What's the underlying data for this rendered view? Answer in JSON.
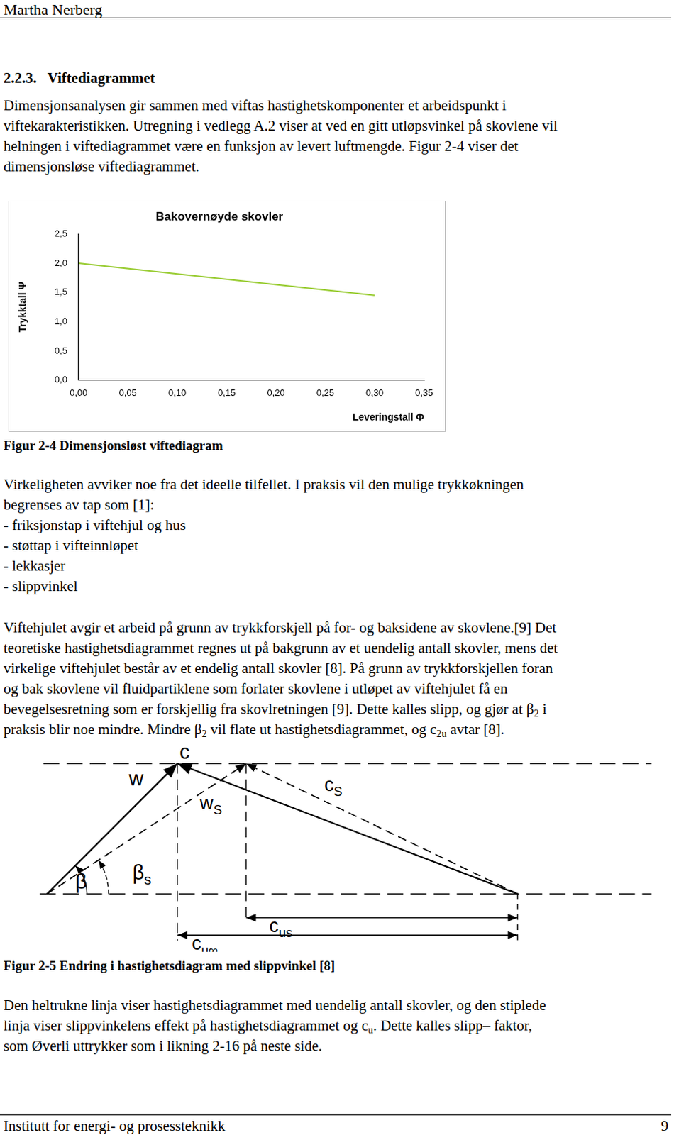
{
  "header": {
    "author": "Martha Nerberg"
  },
  "section": {
    "number": "2.2.3.",
    "title": "Viftediagrammet"
  },
  "intro": [
    "Dimensjonsanalysen gir sammen med viftas hastighetskomponenter et arbeidspunkt i",
    "viftekarakteristikken. Utregning i vedlegg A.2 viser at ved en gitt utløpsvinkel på skovlene vil",
    "helningen i viftediagrammet være en funksjon av levert luftmengde. Figur 2-4 viser det",
    "dimensjonsløse viftediagrammet."
  ],
  "chart_data": {
    "type": "line",
    "title": "Bakovernøyde skovler",
    "y_label": "Trykktall Ψ",
    "x_label": "Leveringstall Φ",
    "x": [
      0,
      0.3
    ],
    "values": [
      2.0,
      1.45
    ],
    "color": "#99cc33",
    "marker": "none",
    "xlim": [
      0,
      0.35
    ],
    "xticks": [
      {
        "value": 0,
        "label": "0,00"
      },
      {
        "value": 0.05,
        "label": "0,05"
      },
      {
        "value": 0.1,
        "label": "0,10"
      },
      {
        "value": 0.15,
        "label": "0,15"
      },
      {
        "value": 0.2,
        "label": "0,20"
      },
      {
        "value": 0.25,
        "label": "0,25"
      },
      {
        "value": 0.3,
        "label": "0,30"
      },
      {
        "value": 0.35,
        "label": "0,35"
      }
    ],
    "ylim": [
      0,
      2.5
    ],
    "yticks": [
      {
        "value": 0,
        "label": "0,0"
      },
      {
        "value": 0.5,
        "label": "0,5"
      },
      {
        "value": 1,
        "label": "1,0"
      },
      {
        "value": 1.5,
        "label": "1,5"
      },
      {
        "value": 2,
        "label": "2,0"
      },
      {
        "value": 2.5,
        "label": "2,5"
      }
    ],
    "grid": false
  },
  "figure_2_4_caption": "Figur 2-4 Dimensjonsløst viftediagram",
  "losses": [
    "Virkeligheten avviker noe fra det ideelle tilfellet. I praksis vil den mulige trykkøkningen",
    "begrenses av tap som [1]:",
    "- friksjonstap i viftehjul og hus",
    "- støttap i vifteinnløpet",
    "- lekkasjer",
    "- slippvinkel"
  ],
  "slip": [
    "Viftehjulet avgir et arbeid på grunn av trykkforskjell på for- og baksidene av skovlene.[9] Det",
    "teoretiske hastighetsdiagrammet regnes ut på bakgrunn av et uendelig antall skovler, mens det",
    "virkelige viftehjulet består av et endelig antall skovler [8]. På grunn av trykkforskjellen foran",
    "og bak skovlene vil fluidpartiklene som forlater skovlene i utløpet av viftehjulet få en",
    [
      "bevegelsesretning som er forskjellig fra skovlretningen [9]. Dette kalles slipp, og gjør at β",
      {
        "sub": "2"
      },
      " i"
    ],
    [
      "praksis blir noe mindre. Mindre β",
      {
        "sub": "2"
      },
      " vil flate ut hastighetsdiagrammet, og c",
      {
        "sub": "2u"
      },
      " avtar [8]."
    ]
  ],
  "figure_2_5": {
    "labels": {
      "c": {
        "t": "c"
      },
      "w": {
        "t": "w"
      },
      "ws": {
        "t": "w",
        "sub": "S"
      },
      "cs": {
        "t": "c",
        "sub": "S"
      },
      "beta": {
        "t": "β"
      },
      "beta_s": {
        "t": "β",
        "sub": "s"
      },
      "cus": {
        "t": "c",
        "sub": "us"
      },
      "cuinf": {
        "t": "c",
        "sub": "u∞"
      }
    },
    "caption": "Figur 2-5 Endring i hastighetsdiagram med slippvinkel [8]"
  },
  "closing": [
    "Den heltrukne linja viser hastighetsdiagrammet med uendelig antall skovler, og den stiplede",
    [
      "linja viser slippvinkelens effekt på hastighetsdiagrammet og c",
      {
        "sub": "u"
      },
      ". Dette kalles slipp– faktor,"
    ],
    "som Øverli uttrykker som i likning 2-16 på neste side."
  ],
  "footer": {
    "institute": "Institutt for energi- og prosessteknikk",
    "page": 9
  }
}
